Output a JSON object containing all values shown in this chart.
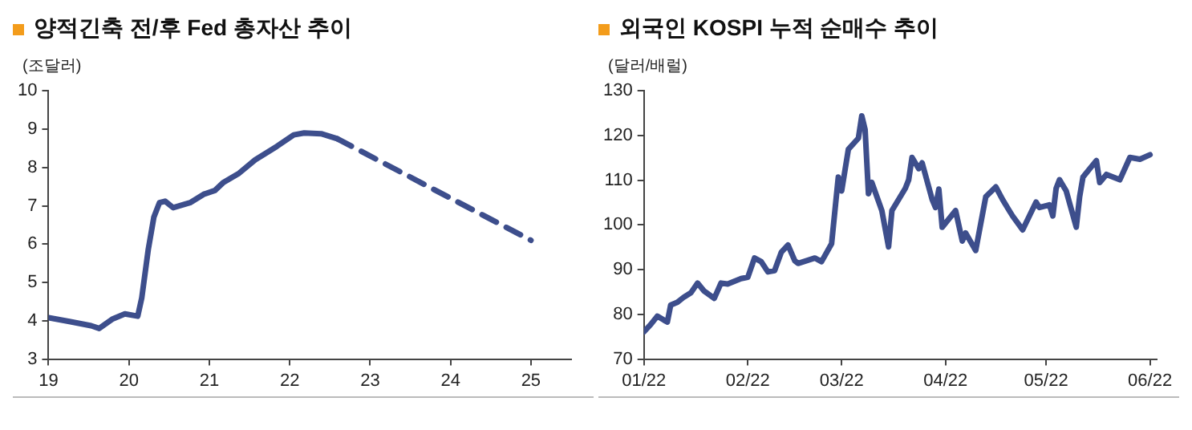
{
  "chart_data": [
    {
      "type": "line",
      "title": "양적긴축 전/후 Fed 총자산 추이",
      "ylabel": "(조달러)",
      "xlim": [
        19,
        25.5
      ],
      "xticks": [
        19,
        20,
        21,
        22,
        23,
        24,
        25
      ],
      "ylim": [
        3,
        10
      ],
      "yticks": [
        3,
        4,
        5,
        6,
        7,
        8,
        9,
        10
      ],
      "grid": false,
      "legend": false,
      "marker": "none",
      "series": [
        {
          "color": "#3d4e8c",
          "line_style": "solid",
          "x": [
            19.0,
            19.26,
            19.53,
            19.63,
            19.8,
            19.95,
            20.11,
            20.16,
            20.24,
            20.31,
            20.38,
            20.45,
            20.55,
            20.76,
            20.93,
            21.07,
            21.17,
            21.37,
            21.57,
            21.84,
            22.05,
            22.18,
            22.39,
            22.59
          ],
          "values": [
            4.08,
            3.98,
            3.87,
            3.8,
            4.05,
            4.18,
            4.12,
            4.6,
            5.85,
            6.7,
            7.08,
            7.12,
            6.95,
            7.08,
            7.3,
            7.4,
            7.6,
            7.85,
            8.2,
            8.55,
            8.85,
            8.9,
            8.88,
            8.75
          ]
        },
        {
          "color": "#3d4e8c",
          "line_style": "dashed",
          "x": [
            22.59,
            25.0
          ],
          "values": [
            8.75,
            6.1
          ]
        }
      ]
    },
    {
      "type": "line",
      "title": "외국인 KOSPI 누적 순매수 추이",
      "ylabel": "(달러/배럴)",
      "xlim": [
        "2022-01-01",
        "2022-06-03"
      ],
      "xticks": [
        {
          "value": "2022-01-01",
          "label": "01/22"
        },
        {
          "value": "2022-02-01",
          "label": "02/22"
        },
        {
          "value": "2022-03-01",
          "label": "03/22"
        },
        {
          "value": "2022-04-01",
          "label": "04/22"
        },
        {
          "value": "2022-05-01",
          "label": "05/22"
        },
        {
          "value": "2022-06-01",
          "label": "06/22"
        }
      ],
      "ylim": [
        70,
        130
      ],
      "yticks": [
        70,
        80,
        90,
        100,
        110,
        120,
        130
      ],
      "grid": false,
      "legend": false,
      "marker": "none",
      "series": [
        {
          "color": "#3d4e8c",
          "line_style": "solid",
          "x": [
            "2022-01-01",
            "2022-01-03",
            "2022-01-05",
            "2022-01-07",
            "2022-01-08",
            "2022-01-09",
            "2022-01-11",
            "2022-01-13",
            "2022-01-15",
            "2022-01-17",
            "2022-01-19",
            "2022-01-22",
            "2022-01-24",
            "2022-01-26",
            "2022-01-30",
            "2022-02-01",
            "2022-02-03",
            "2022-02-05",
            "2022-02-07",
            "2022-02-09",
            "2022-02-11",
            "2022-02-13",
            "2022-02-15",
            "2022-02-16",
            "2022-02-21",
            "2022-02-23",
            "2022-02-26",
            "2022-02-28",
            "2022-03-01",
            "2022-03-03",
            "2022-03-06",
            "2022-03-07",
            "2022-03-08",
            "2022-03-09",
            "2022-03-10",
            "2022-03-13",
            "2022-03-15",
            "2022-03-16",
            "2022-03-20",
            "2022-03-21",
            "2022-03-22",
            "2022-03-24",
            "2022-03-25",
            "2022-03-28",
            "2022-03-29",
            "2022-03-30",
            "2022-03-31",
            "2022-04-04",
            "2022-04-06",
            "2022-04-07",
            "2022-04-10",
            "2022-04-13",
            "2022-04-16",
            "2022-04-18",
            "2022-04-20",
            "2022-04-21",
            "2022-04-24",
            "2022-04-26",
            "2022-04-28",
            "2022-04-29",
            "2022-05-02",
            "2022-05-03",
            "2022-05-04",
            "2022-05-05",
            "2022-05-07",
            "2022-05-10",
            "2022-05-11",
            "2022-05-12",
            "2022-05-16",
            "2022-05-17",
            "2022-05-19",
            "2022-05-23",
            "2022-05-26",
            "2022-05-29",
            "2022-06-01"
          ],
          "values": [
            76.1,
            77.7,
            79.6,
            78.7,
            78.3,
            82.1,
            82.7,
            83.9,
            84.8,
            87.0,
            85.2,
            83.6,
            87.0,
            86.8,
            88.0,
            88.3,
            92.6,
            91.8,
            89.5,
            89.8,
            93.9,
            95.5,
            92.0,
            91.4,
            92.6,
            91.8,
            95.8,
            110.7,
            107.6,
            116.9,
            119.4,
            124.4,
            121.3,
            107.0,
            109.5,
            103.2,
            95.1,
            103.2,
            108.2,
            110.1,
            115.1,
            112.6,
            113.9,
            105.7,
            103.9,
            108.0,
            99.5,
            103.2,
            96.4,
            98.2,
            94.3,
            106.3,
            108.5,
            105.7,
            103.2,
            102.0,
            98.9,
            102.0,
            105.1,
            103.9,
            104.5,
            102.0,
            108.2,
            110.1,
            107.6,
            99.5,
            106.3,
            110.7,
            114.4,
            109.5,
            111.3,
            110.1,
            115.1,
            114.7,
            115.7
          ]
        }
      ]
    }
  ]
}
